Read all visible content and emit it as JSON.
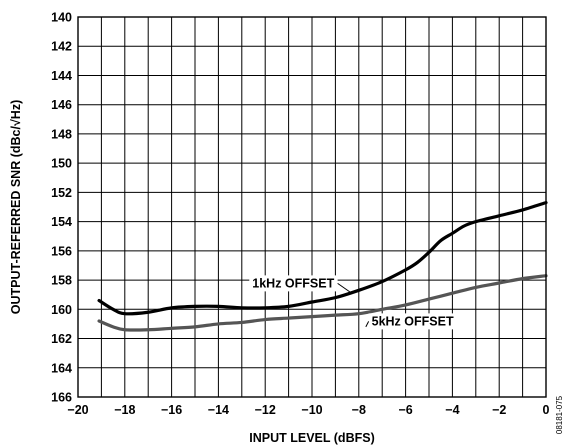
{
  "chart_data": {
    "type": "line",
    "xlabel": "INPUT LEVEL (dBFS)",
    "ylabel": "OUTPUT-REFERRED SNR (dBc/√Hz)",
    "xlim": [
      -20,
      0
    ],
    "ylim": [
      140,
      166
    ],
    "y_inverted": true,
    "x_ticks": [
      -20,
      -18,
      -16,
      -14,
      -12,
      -10,
      -8,
      -6,
      -4,
      -2,
      0
    ],
    "x_tick_labels": [
      "−20",
      "−18",
      "−16",
      "−14",
      "−12",
      "−10",
      "−8",
      "−6",
      "−4",
      "−2",
      "0"
    ],
    "y_ticks": [
      140,
      142,
      144,
      146,
      148,
      150,
      152,
      154,
      156,
      158,
      160,
      162,
      164,
      166
    ],
    "y_tick_labels": [
      "140",
      "142",
      "144",
      "146",
      "148",
      "150",
      "152",
      "154",
      "156",
      "158",
      "160",
      "162",
      "164",
      "166"
    ],
    "grid": true,
    "figure_id": "08181-075",
    "series": [
      {
        "name": "1kHz OFFSET",
        "color": "#000000",
        "x": [
          -19.1,
          -18.5,
          -18,
          -17,
          -16,
          -15,
          -14,
          -13,
          -12,
          -11,
          -10,
          -9,
          -8,
          -7,
          -6,
          -5.5,
          -5,
          -4.5,
          -4,
          -3.5,
          -3,
          -2,
          -1,
          0
        ],
        "y": [
          159.4,
          160.0,
          160.3,
          160.2,
          159.9,
          159.8,
          159.8,
          159.9,
          159.9,
          159.8,
          159.5,
          159.2,
          158.7,
          158.1,
          157.3,
          156.8,
          156.1,
          155.3,
          154.8,
          154.3,
          154.0,
          153.6,
          153.2,
          152.7
        ]
      },
      {
        "name": "5kHz OFFSET",
        "color": "#555555",
        "x": [
          -19.1,
          -18.5,
          -18,
          -17,
          -16,
          -15,
          -14,
          -13,
          -12,
          -11,
          -10,
          -9,
          -8,
          -7,
          -6,
          -5,
          -4,
          -3,
          -2,
          -1,
          0
        ],
        "y": [
          160.8,
          161.2,
          161.4,
          161.4,
          161.3,
          161.2,
          161.0,
          160.9,
          160.7,
          160.6,
          160.5,
          160.4,
          160.3,
          160.0,
          159.7,
          159.3,
          158.9,
          158.5,
          158.2,
          157.9,
          157.7
        ]
      }
    ],
    "annotations": [
      {
        "text": "1kHz OFFSET",
        "x": -10.8,
        "y": 158.5,
        "leader_to_x": -8.3,
        "leader_to_y": 158.9
      },
      {
        "text": "5kHz OFFSET",
        "x": -5.7,
        "y": 161.1,
        "leader_to_x": -7.7,
        "leader_to_y": 161.2
      }
    ]
  }
}
